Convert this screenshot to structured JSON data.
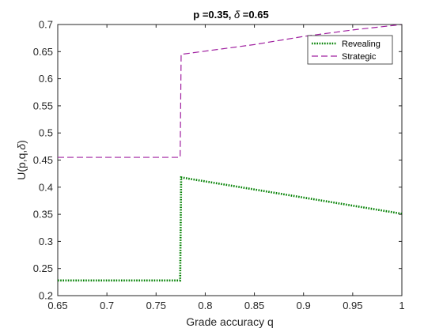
{
  "chart_data": {
    "type": "line",
    "title": {
      "p_part": "p =0.35, ",
      "delta_symbol": "δ",
      "delta_part": " =0.65"
    },
    "xlabel": "Grade accuracy q",
    "ylabel": {
      "prefix": "U(p,q,",
      "delta_symbol": "δ",
      "suffix": ")"
    },
    "xlim": [
      0.65,
      1.0
    ],
    "ylim": [
      0.2,
      0.7
    ],
    "xticks": [
      0.65,
      0.7,
      0.75,
      0.8,
      0.85,
      0.9,
      0.95,
      1
    ],
    "xtick_labels": [
      "0.65",
      "0.7",
      "0.75",
      "0.8",
      "0.85",
      "0.9",
      "0.95",
      "1"
    ],
    "yticks": [
      0.2,
      0.25,
      0.3,
      0.35,
      0.4,
      0.45,
      0.5,
      0.55,
      0.6,
      0.65,
      0.7
    ],
    "ytick_labels": [
      "0.2",
      "0.25",
      "0.3",
      "0.35",
      "0.4",
      "0.45",
      "0.5",
      "0.55",
      "0.6",
      "0.65",
      "0.7"
    ],
    "grid": false,
    "legend_position": "top-right",
    "series": [
      {
        "name": "Revealing",
        "color": "#008000",
        "style": "dotted",
        "x": [
          0.65,
          0.7745,
          0.7745,
          0.7755,
          1.0
        ],
        "y": [
          0.228,
          0.228,
          0.228,
          0.418,
          0.351
        ]
      },
      {
        "name": "Strategic",
        "color": "#a020a0",
        "style": "dashed",
        "x": [
          0.65,
          0.7745,
          0.7745,
          0.7755,
          0.85,
          0.9,
          0.95,
          1.0
        ],
        "y": [
          0.455,
          0.455,
          0.455,
          0.645,
          0.663,
          0.678,
          0.69,
          0.7
        ]
      }
    ]
  }
}
